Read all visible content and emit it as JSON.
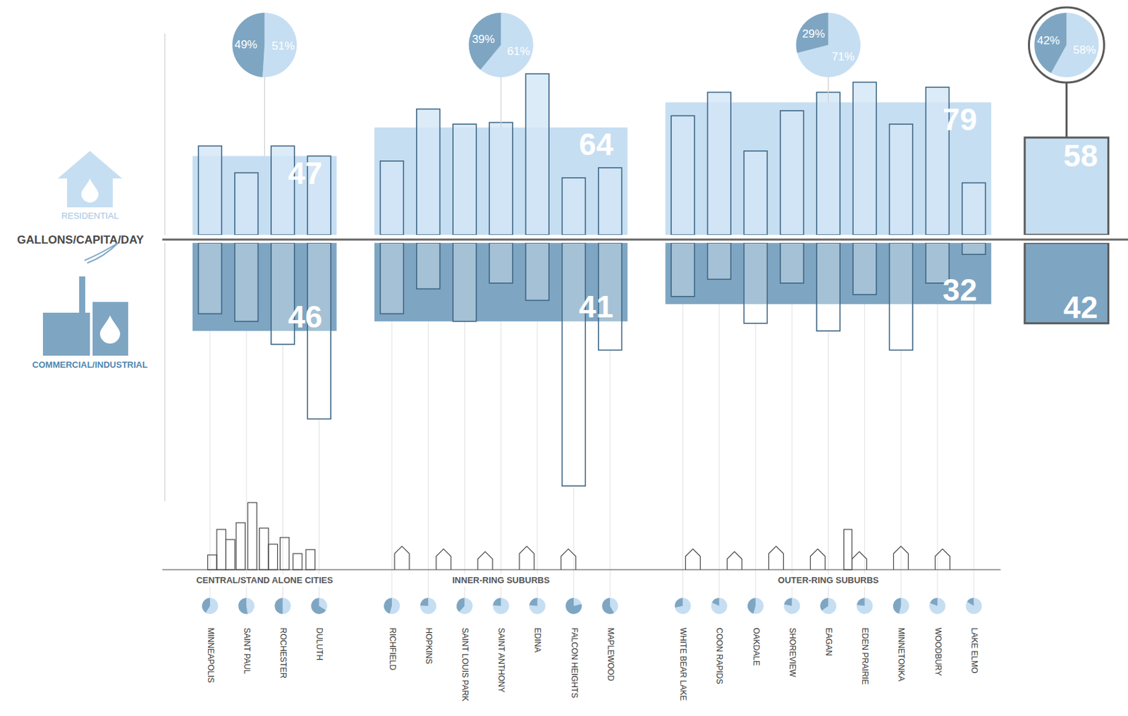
{
  "chart_data": {
    "type": "bar",
    "y_label": "GALLONS/CAPITA/DAY",
    "categories": [
      "MINNEAPOLIS",
      "SAINT PAUL",
      "ROCHESTER",
      "DULUTH",
      "RICHFIELD",
      "HOPKINS",
      "SAINT LOUIS PARK",
      "SAINT ANTHONY",
      "EDINA",
      "FALCON HEIGHTS",
      "MAPLEWOOD",
      "WHITE BEAR LAKE",
      "COON RAPIDS",
      "OAKDALE",
      "SHOREVIEW",
      "EAGAN",
      "EDEN PRAIRIE",
      "MINNETONKA",
      "WOODBURY",
      "LAKE ELMO"
    ],
    "series": [
      {
        "name": "RESIDENTIAL",
        "color": "#c6def2",
        "values": [
          53,
          37,
          53,
          47,
          44,
          75,
          66,
          67,
          96,
          34,
          40,
          71,
          85,
          50,
          74,
          85,
          91,
          66,
          88,
          31
        ]
      },
      {
        "name": "COMMERCIAL/INDUSTRIAL",
        "color": "#7ea6c3",
        "axis": "y2",
        "values": [
          37,
          41,
          53,
          92,
          37,
          24,
          41,
          21,
          30,
          127,
          56,
          28,
          19,
          42,
          21,
          46,
          27,
          56,
          21,
          6
        ]
      }
    ],
    "groups": [
      {
        "name": "CENTRAL/STAND ALONE CITIES",
        "categories": [
          "MINNEAPOLIS",
          "SAINT PAUL",
          "ROCHESTER",
          "DULUTH"
        ],
        "values": [
          47,
          46
        ],
        "shares": [
          51,
          49
        ],
        "share_labels": [
          "51%",
          "49%"
        ]
      },
      {
        "name": "INNER-RING SUBURBS",
        "categories": [
          "RICHFIELD",
          "HOPKINS",
          "SAINT LOUIS PARK",
          "SAINT ANTHONY",
          "EDINA",
          "FALCON HEIGHTS",
          "MAPLEWOOD"
        ],
        "values": [
          64,
          41
        ],
        "shares": [
          61,
          39
        ],
        "share_labels": [
          "61%",
          "39%"
        ]
      },
      {
        "name": "OUTER-RING SUBURBS",
        "categories": [
          "WHITE BEAR LAKE",
          "COON RAPIDS",
          "OAKDALE",
          "SHOREVIEW",
          "EAGAN",
          "EDEN PRAIRIE",
          "MINNETONKA",
          "WOODBURY",
          "LAKE ELMO"
        ],
        "values": [
          79,
          32
        ],
        "shares": [
          71,
          29
        ],
        "share_labels": [
          "71%",
          "29%"
        ]
      }
    ],
    "total": {
      "values": [
        58,
        42
      ],
      "shares": [
        58,
        42
      ],
      "share_labels": [
        "58%",
        "42%"
      ]
    },
    "ylim": [
      0,
      120
    ],
    "y2lim": [
      0,
      135
    ],
    "tick_labels": "x"
  }
}
